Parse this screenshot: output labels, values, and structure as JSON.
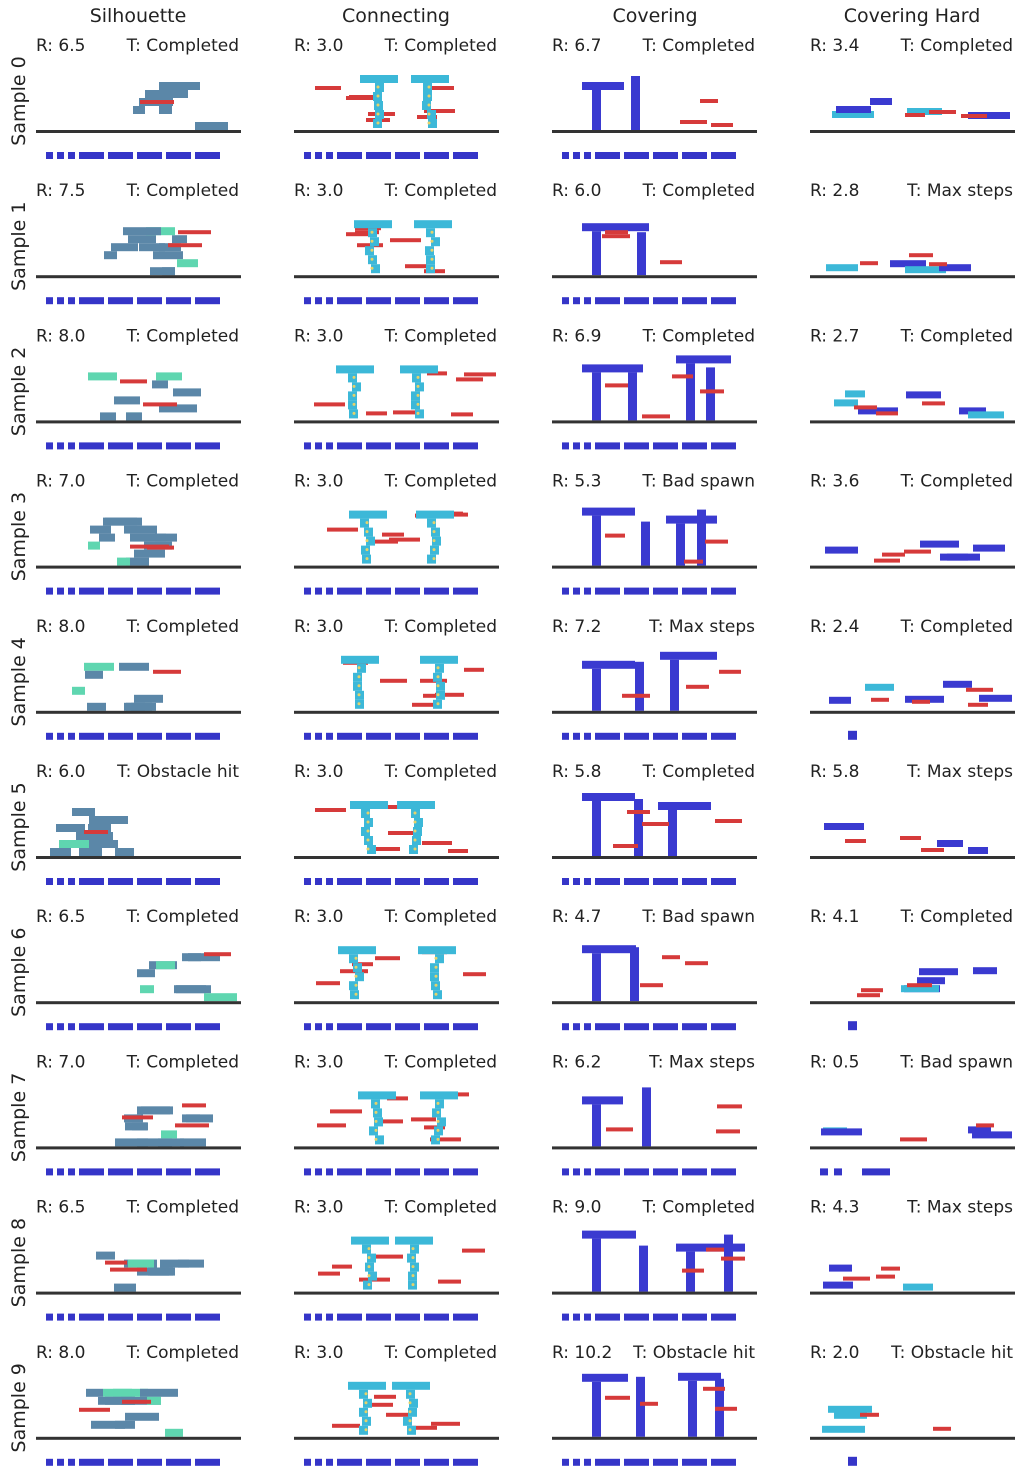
{
  "columns": [
    "Silhouette",
    "Connecting",
    "Covering",
    "Covering Hard"
  ],
  "rows": [
    "Sample 0",
    "Sample 1",
    "Sample 2",
    "Sample 3",
    "Sample 4",
    "Sample 5",
    "Sample 6",
    "Sample 7",
    "Sample 8",
    "Sample 9"
  ],
  "cells": [
    [
      {
        "r": "R: 6.5",
        "t": "T: Completed"
      },
      {
        "r": "R: 3.0",
        "t": "T: Completed"
      },
      {
        "r": "R: 6.7",
        "t": "T: Completed"
      },
      {
        "r": "R: 3.4",
        "t": "T: Completed"
      }
    ],
    [
      {
        "r": "R: 7.5",
        "t": "T: Completed"
      },
      {
        "r": "R: 3.0",
        "t": "T: Completed"
      },
      {
        "r": "R: 6.0",
        "t": "T: Completed"
      },
      {
        "r": "R: 2.8",
        "t": "T: Max steps"
      }
    ],
    [
      {
        "r": "R: 8.0",
        "t": "T: Completed"
      },
      {
        "r": "R: 3.0",
        "t": "T: Completed"
      },
      {
        "r": "R: 6.9",
        "t": "T: Completed"
      },
      {
        "r": "R: 2.7",
        "t": "T: Completed"
      }
    ],
    [
      {
        "r": "R: 7.0",
        "t": "T: Completed"
      },
      {
        "r": "R: 3.0",
        "t": "T: Completed"
      },
      {
        "r": "R: 5.3",
        "t": "T: Bad spawn"
      },
      {
        "r": "R: 3.6",
        "t": "T: Completed"
      }
    ],
    [
      {
        "r": "R: 8.0",
        "t": "T: Completed"
      },
      {
        "r": "R: 3.0",
        "t": "T: Completed"
      },
      {
        "r": "R: 7.2",
        "t": "T: Max steps"
      },
      {
        "r": "R: 2.4",
        "t": "T: Completed"
      }
    ],
    [
      {
        "r": "R: 6.0",
        "t": "T: Obstacle hit"
      },
      {
        "r": "R: 3.0",
        "t": "T: Completed"
      },
      {
        "r": "R: 5.8",
        "t": "T: Completed"
      },
      {
        "r": "R: 5.8",
        "t": "T: Max steps"
      }
    ],
    [
      {
        "r": "R: 6.5",
        "t": "T: Completed"
      },
      {
        "r": "R: 3.0",
        "t": "T: Completed"
      },
      {
        "r": "R: 4.7",
        "t": "T: Bad spawn"
      },
      {
        "r": "R: 4.1",
        "t": "T: Completed"
      }
    ],
    [
      {
        "r": "R: 7.0",
        "t": "T: Completed"
      },
      {
        "r": "R: 3.0",
        "t": "T: Completed"
      },
      {
        "r": "R: 6.2",
        "t": "T: Max steps"
      },
      {
        "r": "R: 0.5",
        "t": "T: Bad spawn"
      }
    ],
    [
      {
        "r": "R: 6.5",
        "t": "T: Completed"
      },
      {
        "r": "R: 3.0",
        "t": "T: Completed"
      },
      {
        "r": "R: 9.0",
        "t": "T: Completed"
      },
      {
        "r": "R: 4.3",
        "t": "T: Max steps"
      }
    ],
    [
      {
        "r": "R: 8.0",
        "t": "T: Completed"
      },
      {
        "r": "R: 3.0",
        "t": "T: Completed"
      },
      {
        "r": "R: 10.2",
        "t": "T: Obstacle hit"
      },
      {
        "r": "R: 2.0",
        "t": "T: Obstacle hit"
      }
    ]
  ],
  "colors": {
    "ground": "#333333",
    "inventory": "#3535c8",
    "target": "#d63a3a",
    "silhouette_block": "#5b87a8",
    "silhouette_highlight": "#5fd6b0",
    "connecting_block": "#3cb8d8",
    "covering_block": "#3a3ad0",
    "covering_hard_block": "#3a3ad0",
    "covering_hard_highlight": "#3cb8d8",
    "joint": "#e6d26a"
  }
}
